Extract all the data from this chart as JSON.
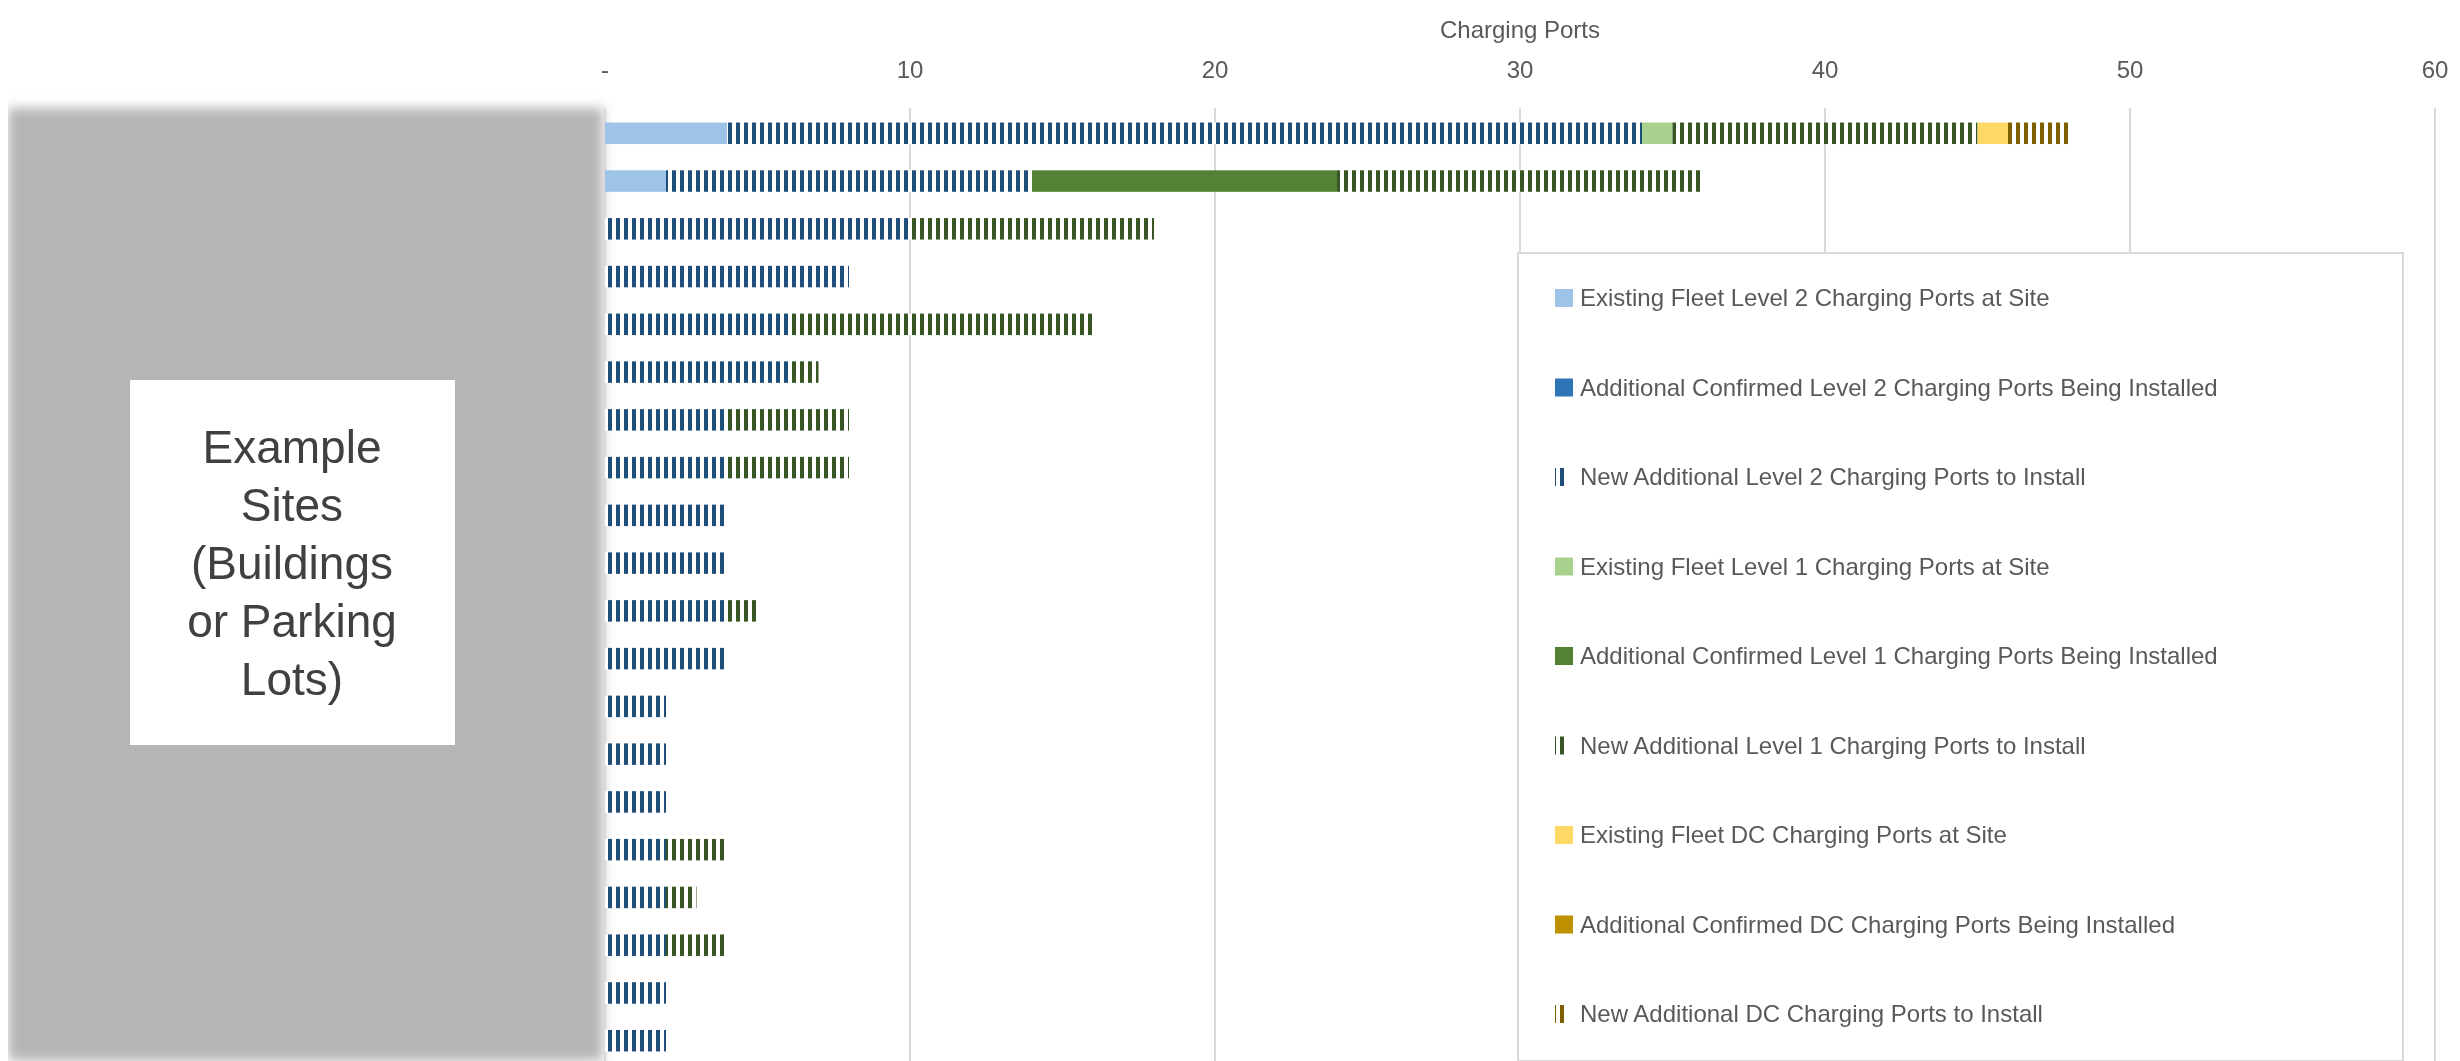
{
  "chart_data": {
    "type": "bar",
    "orientation": "horizontal",
    "stacked": true,
    "xlabel": "Charging Ports",
    "categories": [
      null,
      null,
      null,
      null,
      null,
      null,
      null,
      null,
      null,
      null,
      null,
      null,
      null,
      null,
      null,
      null,
      null,
      null,
      null,
      null
    ],
    "series": [
      {
        "name": "Existing Fleet Level 2 Charging Ports at Site",
        "color": "#9dc3e6",
        "values": [
          4,
          2,
          0,
          0,
          0,
          0,
          0,
          0,
          0,
          0,
          0,
          0,
          0,
          0,
          0,
          0,
          0,
          0,
          0,
          0
        ]
      },
      {
        "name": "Additional Confirmed Level 2 Charging Ports Being Installed",
        "color": "#2e75b6",
        "values": [
          0,
          0,
          0,
          0,
          0,
          0,
          0,
          0,
          0,
          0,
          0,
          0,
          0,
          0,
          0,
          0,
          0,
          0,
          0,
          0
        ]
      },
      {
        "name": "New Additional Level 2 Charging Ports to Install",
        "color": "#1f4e79",
        "values": [
          30,
          12,
          10,
          8,
          6,
          6,
          4,
          4,
          4,
          4,
          4,
          4,
          2,
          2,
          2,
          2,
          2,
          2,
          2,
          2
        ]
      },
      {
        "name": "Existing Fleet Level 1 Charging Ports at Site",
        "color": "#a9d18e",
        "values": [
          1,
          0,
          0,
          0,
          0,
          0,
          0,
          0,
          0,
          0,
          0,
          0,
          0,
          0,
          0,
          0,
          0,
          0,
          0,
          0
        ]
      },
      {
        "name": "Additional Confirmed Level 1 Charging Ports Being Installed",
        "color": "#548235",
        "values": [
          0,
          10,
          0,
          0,
          0,
          0,
          0,
          0,
          0,
          0,
          0,
          0,
          0,
          0,
          0,
          0,
          0,
          0,
          0,
          0
        ]
      },
      {
        "name": "New Additional Level 1 Charging Ports to Install",
        "color": "#375623",
        "values": [
          10,
          12,
          8,
          0,
          10,
          1,
          4,
          4,
          0,
          0,
          1,
          0,
          0,
          0,
          0,
          2,
          1,
          2,
          0,
          0
        ]
      },
      {
        "name": "Existing Fleet DC Charging Ports at Site",
        "color": "#ffd966",
        "values": [
          1,
          0,
          0,
          0,
          0,
          0,
          0,
          0,
          0,
          0,
          0,
          0,
          0,
          0,
          0,
          0,
          0,
          0,
          0,
          0
        ]
      },
      {
        "name": "Additional Confirmed DC Charging Ports Being Installed",
        "color": "#bf9000",
        "values": [
          0,
          0,
          0,
          0,
          0,
          0,
          0,
          0,
          0,
          0,
          0,
          0,
          0,
          0,
          0,
          0,
          0,
          0,
          0,
          0
        ]
      },
      {
        "name": "New Additional DC Charging Ports to Install",
        "color": "#7f6000",
        "values": [
          2,
          0,
          0,
          0,
          0,
          0,
          0,
          0,
          0,
          0,
          0,
          0,
          0,
          0,
          0,
          0,
          0,
          0,
          0,
          0
        ]
      }
    ],
    "xlim": [
      0,
      60
    ],
    "xticks": [
      {
        "value": 0,
        "label": "-"
      },
      10,
      20,
      30,
      40,
      50,
      60
    ],
    "grid": "x",
    "legend": "right",
    "annotations": [
      "Example Sites (Buildings or Parking Lots)"
    ]
  }
}
